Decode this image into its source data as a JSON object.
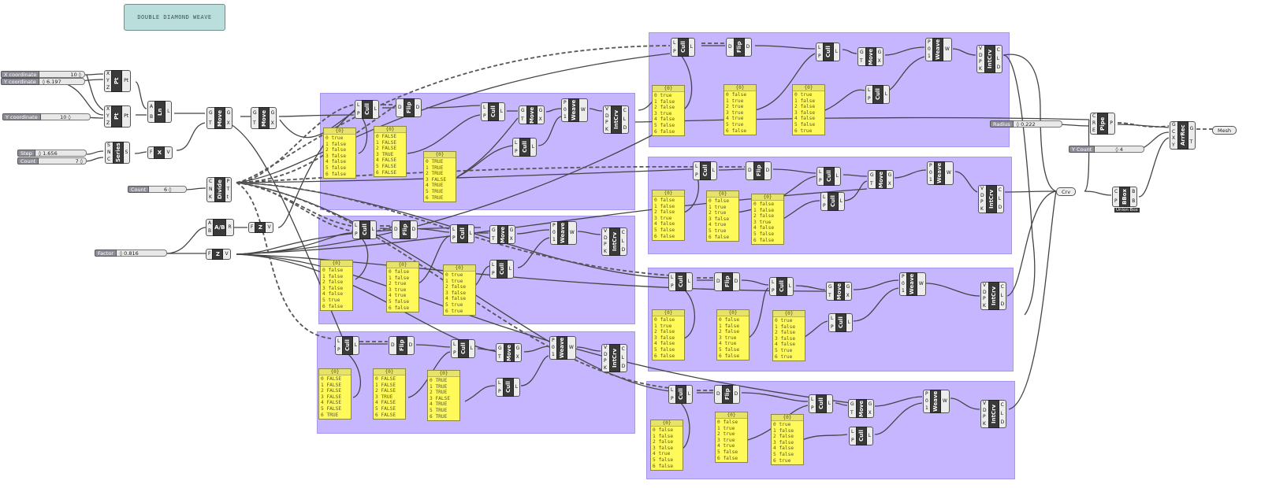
{
  "title": "DOUBLE DIAMOND WEAVE",
  "sliders": [
    {
      "label": "X coordinate",
      "value": "10 ◊"
    },
    {
      "label": "Y coordinate",
      "value": "◊ 6.197"
    },
    {
      "label": "Y coordinate",
      "value": "10 ◊"
    },
    {
      "label": "Step",
      "value": "◊ 1.656"
    },
    {
      "label": "Count",
      "value": "7 ◊"
    },
    {
      "label": "Count",
      "value": "6 ◊"
    },
    {
      "label": "Factor",
      "value": "◊ 0.816"
    },
    {
      "label": "Radius",
      "value": "◊ 0.222"
    },
    {
      "label": "Y Count",
      "value": "◊ 4"
    }
  ],
  "params": {
    "crv": "Crv",
    "mesh": "Mesh"
  },
  "comps": {
    "pt1": {
      "name": "Pt",
      "in": [
        "X",
        "Y",
        "Z"
      ],
      "out": [
        "Pt"
      ]
    },
    "pt2": {
      "name": "Pt",
      "in": [
        "X",
        "Y",
        "Z"
      ],
      "out": [
        "Pt"
      ]
    },
    "ln": {
      "name": "Ln",
      "in": [
        "A",
        "B"
      ],
      "out": [
        "L"
      ]
    },
    "move1": {
      "name": "Move",
      "in": [
        "G",
        "T"
      ],
      "out": [
        "G",
        "X"
      ]
    },
    "move2": {
      "name": "Move",
      "in": [
        "G",
        "T"
      ],
      "out": [
        "G",
        "X"
      ]
    },
    "series": {
      "name": "Series",
      "in": [
        "S",
        "N",
        "C"
      ],
      "out": [
        "S"
      ]
    },
    "unitx": {
      "name": "X",
      "in": [
        "F"
      ],
      "out": [
        "V"
      ]
    },
    "divide": {
      "name": "Divide",
      "in": [
        "C",
        "N",
        "K"
      ],
      "out": [
        "P",
        "T",
        "t"
      ]
    },
    "ab": {
      "name": "A/B",
      "in": [
        "A",
        "B"
      ],
      "out": [
        "R"
      ]
    },
    "unitz1": {
      "name": "Z",
      "in": [
        "F"
      ],
      "out": [
        "V"
      ]
    },
    "unitz2": {
      "name": "Z",
      "in": [
        "F"
      ],
      "out": [
        "V"
      ]
    },
    "pipe": {
      "name": "Pipe",
      "in": [
        "C",
        "R",
        "E"
      ],
      "out": [
        "P"
      ]
    },
    "arrrec": {
      "name": "ArrRec",
      "in": [
        "G",
        "C",
        "X",
        "Y"
      ],
      "out": [
        "G",
        "T"
      ]
    },
    "bbox": {
      "name": "BBox",
      "in": [
        "C",
        "P"
      ],
      "out": [
        "B",
        "B"
      ],
      "caption": "Union Box"
    }
  },
  "cluster_comps": [
    {
      "name": "Cull",
      "in": [
        "L",
        "P"
      ],
      "out": [
        "L"
      ]
    },
    {
      "name": "Flip",
      "in": [
        "D"
      ],
      "out": [
        "D"
      ]
    },
    {
      "name": "Cull",
      "in": [
        "L",
        "P"
      ],
      "out": [
        "L"
      ]
    },
    {
      "name": "Move",
      "in": [
        "G",
        "T"
      ],
      "out": [
        "G",
        "X"
      ]
    },
    {
      "name": "Weave",
      "in": [
        "P",
        "0",
        "1"
      ],
      "out": [
        "W"
      ]
    },
    {
      "name": "Cull",
      "in": [
        "L",
        "P"
      ],
      "out": [
        "L"
      ]
    },
    {
      "name": "IntCrv",
      "in": [
        "V",
        "D",
        "P",
        "K"
      ],
      "out": [
        "C",
        "L",
        "D"
      ]
    },
    {
      "name": "Cull",
      "in": [
        "L",
        "P"
      ],
      "out": [
        "L"
      ]
    },
    {
      "name": "Flip",
      "in": [
        "D"
      ],
      "out": [
        "D"
      ]
    },
    {
      "name": "Cull",
      "in": [
        "L",
        "P"
      ],
      "out": [
        "L"
      ]
    },
    {
      "name": "Move",
      "in": [
        "G",
        "T"
      ],
      "out": [
        "G",
        "X"
      ]
    },
    {
      "name": "Weave",
      "in": [
        "P",
        "0",
        "1"
      ],
      "out": [
        "W"
      ]
    },
    {
      "name": "Cull",
      "in": [
        "L",
        "P"
      ],
      "out": [
        "L"
      ]
    },
    {
      "name": "IntCrv",
      "in": [
        "V",
        "D",
        "P",
        "K"
      ],
      "out": [
        "C",
        "L",
        "D"
      ]
    },
    {
      "name": "Cull",
      "in": [
        "L",
        "P"
      ],
      "out": [
        "L"
      ]
    },
    {
      "name": "Flip",
      "in": [
        "D"
      ],
      "out": [
        "D"
      ]
    },
    {
      "name": "Cull",
      "in": [
        "L",
        "P"
      ],
      "out": [
        "L"
      ]
    },
    {
      "name": "Move",
      "in": [
        "G",
        "T"
      ],
      "out": [
        "G",
        "X"
      ]
    },
    {
      "name": "Weave",
      "in": [
        "P",
        "0",
        "1"
      ],
      "out": [
        "W"
      ]
    },
    {
      "name": "Cull",
      "in": [
        "L",
        "P"
      ],
      "out": [
        "L"
      ]
    },
    {
      "name": "IntCrv",
      "in": [
        "V",
        "D",
        "P",
        "K"
      ],
      "out": [
        "C",
        "L",
        "D"
      ]
    },
    {
      "name": "Cull",
      "in": [
        "L",
        "P"
      ],
      "out": [
        "L"
      ]
    },
    {
      "name": "Flip",
      "in": [
        "D"
      ],
      "out": [
        "D"
      ]
    },
    {
      "name": "Cull",
      "in": [
        "L",
        "P"
      ],
      "out": [
        "L"
      ]
    },
    {
      "name": "Move",
      "in": [
        "G",
        "T"
      ],
      "out": [
        "G",
        "X"
      ]
    },
    {
      "name": "Weave",
      "in": [
        "P",
        "0",
        "1"
      ],
      "out": [
        "W"
      ]
    },
    {
      "name": "Cull",
      "in": [
        "L",
        "P"
      ],
      "out": [
        "L"
      ]
    },
    {
      "name": "IntCrv",
      "in": [
        "V",
        "D",
        "P",
        "K"
      ],
      "out": [
        "C",
        "L",
        "D"
      ]
    },
    {
      "name": "Cull",
      "in": [
        "L",
        "P"
      ],
      "out": [
        "L"
      ]
    },
    {
      "name": "Flip",
      "in": [
        "D"
      ],
      "out": [
        "D"
      ]
    },
    {
      "name": "Cull",
      "in": [
        "L",
        "P"
      ],
      "out": [
        "L"
      ]
    },
    {
      "name": "Move",
      "in": [
        "G",
        "T"
      ],
      "out": [
        "G",
        "X"
      ]
    },
    {
      "name": "Weave",
      "in": [
        "P",
        "0",
        "1"
      ],
      "out": [
        "W"
      ]
    },
    {
      "name": "Cull",
      "in": [
        "L",
        "P"
      ],
      "out": [
        "L"
      ]
    },
    {
      "name": "IntCrv",
      "in": [
        "V",
        "D",
        "P",
        "K"
      ],
      "out": [
        "C",
        "L",
        "D"
      ]
    },
    {
      "name": "Cull",
      "in": [
        "L",
        "P"
      ],
      "out": [
        "L"
      ]
    },
    {
      "name": "Flip",
      "in": [
        "D"
      ],
      "out": [
        "D"
      ]
    },
    {
      "name": "Cull",
      "in": [
        "L",
        "P"
      ],
      "out": [
        "L"
      ]
    },
    {
      "name": "Move",
      "in": [
        "G",
        "T"
      ],
      "out": [
        "G",
        "X"
      ]
    },
    {
      "name": "Weave",
      "in": [
        "P",
        "0",
        "1"
      ],
      "out": [
        "W"
      ]
    },
    {
      "name": "Cull",
      "in": [
        "L",
        "P"
      ],
      "out": [
        "L"
      ]
    },
    {
      "name": "IntCrv",
      "in": [
        "V",
        "D",
        "P",
        "K"
      ],
      "out": [
        "C",
        "L",
        "D"
      ]
    },
    {
      "name": "Cull",
      "in": [
        "L",
        "P"
      ],
      "out": [
        "L"
      ]
    },
    {
      "name": "Flip",
      "in": [
        "D"
      ],
      "out": [
        "D"
      ]
    },
    {
      "name": "Cull",
      "in": [
        "L",
        "P"
      ],
      "out": [
        "L"
      ]
    },
    {
      "name": "Move",
      "in": [
        "G",
        "T"
      ],
      "out": [
        "G",
        "X"
      ]
    },
    {
      "name": "Weave",
      "in": [
        "P",
        "0",
        "1"
      ],
      "out": [
        "W"
      ]
    },
    {
      "name": "Cull",
      "in": [
        "L",
        "P"
      ],
      "out": [
        "L"
      ]
    },
    {
      "name": "IntCrv",
      "in": [
        "V",
        "D",
        "P",
        "K"
      ],
      "out": [
        "C",
        "L",
        "D"
      ]
    }
  ],
  "panels": [
    {
      "header": "{0}",
      "items": [
        "0 true",
        "1 false",
        "2 false",
        "3 false",
        "4 false",
        "5 false",
        "6 false"
      ]
    },
    {
      "header": "{0}",
      "items": [
        "0 FALSE",
        "1 FALSE",
        "2 FALSE",
        "3 TRUE",
        "4 FALSE",
        "5 FALSE",
        "6 FALSE"
      ]
    },
    {
      "header": "{0}",
      "items": [
        "0 TRUE",
        "1 TRUE",
        "2 TRUE",
        "3 FALSE",
        "4 TRUE",
        "5 TRUE",
        "6 TRUE"
      ]
    },
    {
      "header": "{0}",
      "items": [
        "0 false",
        "1 false",
        "2 false",
        "3 false",
        "4 false",
        "5 true",
        "6 false"
      ]
    },
    {
      "header": "{0}",
      "items": [
        "0 false",
        "1 false",
        "2 true",
        "3 true",
        "4 true",
        "5 false",
        "6 false"
      ]
    },
    {
      "header": "{0}",
      "items": [
        "0 true",
        "1 true",
        "2 false",
        "3 false",
        "4 false",
        "5 true",
        "6 true"
      ]
    },
    {
      "header": "{0}",
      "items": [
        "0 FALSE",
        "1 FALSE",
        "2 FALSE",
        "3 FALSE",
        "4 FALSE",
        "5 FALSE",
        "6 TRUE"
      ]
    },
    {
      "header": "{0}",
      "items": [
        "0 FALSE",
        "1 FALSE",
        "2 FALSE",
        "3 TRUE",
        "4 FALSE",
        "5 FALSE",
        "6 FALSE"
      ]
    },
    {
      "header": "{0}",
      "items": [
        "0 TRUE",
        "1 TRUE",
        "2 TRUE",
        "3 FALSE",
        "4 TRUE",
        "5 TRUE",
        "6 TRUE"
      ]
    },
    {
      "header": "{0}",
      "items": [
        "0 true",
        "1 false",
        "2 false",
        "3 true",
        "4 false",
        "5 false",
        "6 false"
      ]
    },
    {
      "header": "{0}",
      "items": [
        "0 false",
        "1 true",
        "2 true",
        "3 true",
        "4 true",
        "5 true",
        "6 false"
      ]
    },
    {
      "header": "{0}",
      "items": [
        "0 true",
        "1 false",
        "2 false",
        "3 false",
        "4 false",
        "5 false",
        "6 true"
      ]
    },
    {
      "header": "{0}",
      "items": [
        "0 false",
        "1 false",
        "2 false",
        "3 true",
        "4 false",
        "5 false",
        "6 false"
      ]
    },
    {
      "header": "{0}",
      "items": [
        "0 false",
        "1 true",
        "2 true",
        "3 false",
        "4 true",
        "5 true",
        "6 false"
      ]
    },
    {
      "header": "{0}",
      "items": [
        "0 false",
        "1 false",
        "2 false",
        "3 true",
        "4 false",
        "5 false",
        "6 false"
      ]
    },
    {
      "header": "{0}",
      "items": [
        "0 false",
        "1 true",
        "2 false",
        "3 false",
        "4 false",
        "5 false",
        "6 false"
      ]
    },
    {
      "header": "{0}",
      "items": [
        "0 false",
        "1 false",
        "2 false",
        "3 true",
        "4 true",
        "5 false",
        "6 false"
      ]
    },
    {
      "header": "{0}",
      "items": [
        "0 true",
        "1 false",
        "2 false",
        "3 false",
        "4 false",
        "5 true",
        "6 true"
      ]
    },
    {
      "header": "{0}",
      "items": [
        "0 false",
        "1 false",
        "2 false",
        "3 false",
        "4 true",
        "5 false",
        "6 false"
      ]
    },
    {
      "header": "{0}",
      "items": [
        "0 false",
        "1 true",
        "2 true",
        "3 true",
        "4 true",
        "5 false",
        "6 false"
      ]
    },
    {
      "header": "{0}",
      "items": [
        "0 true",
        "1 false",
        "2 false",
        "3 false",
        "4 false",
        "5 false",
        "6 true"
      ]
    }
  ]
}
